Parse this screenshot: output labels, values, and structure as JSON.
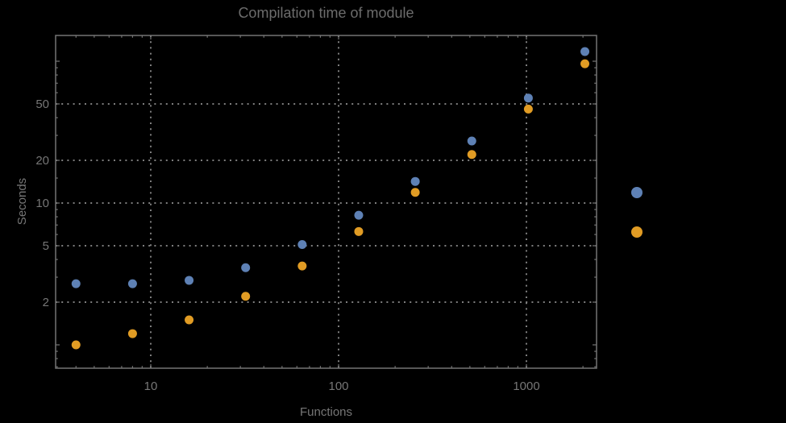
{
  "window": {
    "background": "#000000"
  },
  "styles": {
    "frame_color": "#747474",
    "grid_color": "#7d7d7d",
    "text_color": "#767676",
    "title_color": "#6c6c6c",
    "series1_color": "#5e81b5",
    "series2_color": "#e19c24"
  },
  "chart_data": {
    "type": "scatter",
    "title": "Compilation time of module",
    "xlabel": "Functions",
    "ylabel": "Seconds",
    "x_scale": "log",
    "y_scale": "log",
    "x_range": [
      3.1,
      2360
    ],
    "y_range": [
      0.68,
      152
    ],
    "grid": true,
    "x_major_ticks": [
      10,
      100,
      1000
    ],
    "x_major_labels": [
      "10",
      "100",
      "1000"
    ],
    "x_minor_ticks": [
      4,
      5,
      6,
      7,
      8,
      9,
      20,
      30,
      40,
      50,
      60,
      70,
      80,
      90,
      200,
      300,
      400,
      500,
      600,
      700,
      800,
      900,
      2000
    ],
    "y_major_ticks": [
      2,
      5,
      10,
      20,
      50
    ],
    "y_major_labels": [
      "2",
      "5",
      "10",
      "20",
      "50"
    ],
    "y_unlabeled_major_ticks": [
      1,
      100
    ],
    "y_minor_ticks": [
      0.7,
      0.8,
      0.9,
      3,
      4,
      6,
      7,
      8,
      9,
      15,
      30,
      40,
      60,
      70,
      80,
      90
    ],
    "series": [
      {
        "name": "series-1",
        "color": "#5e81b5",
        "x": [
          4,
          8,
          16,
          32,
          64,
          128,
          256,
          512,
          1024,
          2048
        ],
        "y": [
          2.7,
          2.7,
          2.85,
          3.5,
          5.1,
          8.2,
          14.2,
          27.4,
          55,
          117
        ]
      },
      {
        "name": "series-2",
        "color": "#e19c24",
        "x": [
          4,
          8,
          16,
          32,
          64,
          128,
          256,
          512,
          1024,
          2048
        ],
        "y": [
          1.0,
          1.2,
          1.5,
          2.2,
          3.6,
          6.3,
          11.9,
          22,
          46,
          96
        ]
      }
    ],
    "legend": {
      "position": "right-of-plot",
      "labels_visible": false,
      "markers": [
        {
          "series": "series-1",
          "color": "#5e81b5"
        },
        {
          "series": "series-2",
          "color": "#e19c24"
        }
      ]
    }
  }
}
